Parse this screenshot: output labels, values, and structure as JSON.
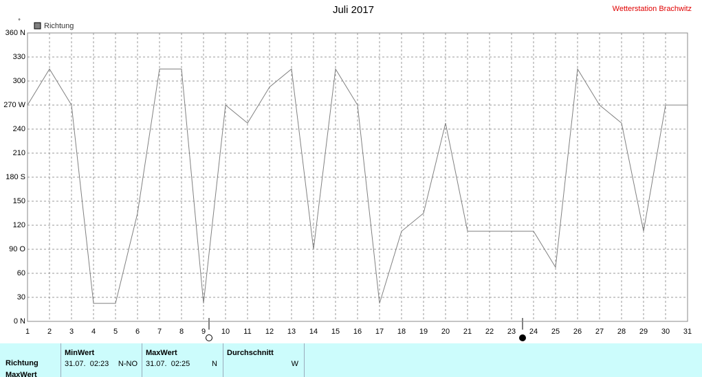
{
  "chart_data": {
    "type": "line",
    "title": "Juli 2017",
    "y_unit": "°",
    "x": [
      1,
      2,
      3,
      4,
      5,
      6,
      7,
      8,
      9,
      10,
      11,
      12,
      13,
      14,
      15,
      16,
      17,
      18,
      19,
      20,
      21,
      22,
      23,
      24,
      25,
      26,
      27,
      28,
      29,
      30,
      31
    ],
    "series": [
      {
        "name": "Richtung",
        "color": "#808080",
        "values": [
          270,
          315,
          270,
          22.5,
          22.5,
          135,
          315,
          315,
          22.5,
          270,
          247.5,
          292.5,
          315,
          90,
          315,
          270,
          22.5,
          112.5,
          135,
          247.5,
          112.5,
          112.5,
          112.5,
          112.5,
          67.5,
          315,
          270,
          247.5,
          112.5,
          270,
          270
        ]
      }
    ],
    "xlim": [
      1,
      31
    ],
    "xticks": [
      1,
      2,
      3,
      4,
      5,
      6,
      7,
      8,
      9,
      10,
      11,
      12,
      13,
      14,
      15,
      16,
      17,
      18,
      19,
      20,
      21,
      22,
      23,
      24,
      25,
      26,
      27,
      28,
      29,
      30,
      31
    ],
    "ylim": [
      0,
      360
    ],
    "yticks": [
      {
        "value": 0,
        "label": "0 N"
      },
      30,
      60,
      {
        "value": 90,
        "label": "90 O"
      },
      120,
      150,
      {
        "value": 180,
        "label": "180 S"
      },
      210,
      240,
      {
        "value": 270,
        "label": "270 W"
      },
      300,
      330,
      {
        "value": 360,
        "label": "360 N"
      }
    ],
    "grid": true
  },
  "station": "Wetterstation Brachwitz",
  "table": {
    "columns": [
      "MinWert",
      "MaxWert",
      "Durchschnitt"
    ],
    "rows": [
      {
        "label": "Richtung",
        "min": {
          "time": "31.07.  02:23",
          "dir": "N-NO"
        },
        "max": {
          "time": "31.07.  02:25",
          "dir": "N"
        },
        "avg": {
          "dir": "W"
        }
      },
      {
        "label": "MaxWert"
      }
    ]
  }
}
